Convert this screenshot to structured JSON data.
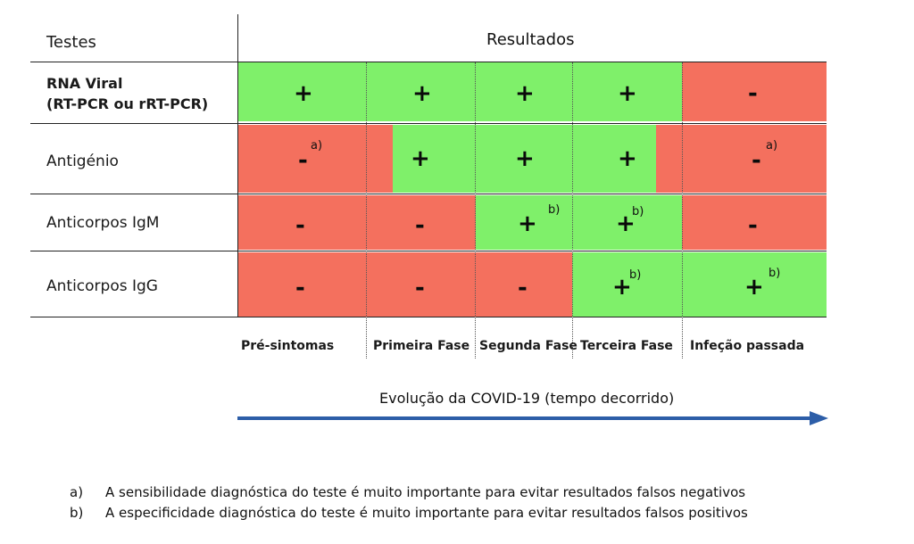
{
  "header": {
    "tests_label": "Testes",
    "results_label": "Resultados"
  },
  "rows": [
    {
      "name_line1": "RNA Viral",
      "name_line2": "(RT-PCR ou rRT-PCR)",
      "cells": [
        {
          "s": "+"
        },
        {
          "s": "+"
        },
        {
          "s": "+"
        },
        {
          "s": "+"
        },
        {
          "s": "-"
        }
      ]
    },
    {
      "name": "Antigénio",
      "cells": [
        {
          "s": "-",
          "n": "a)"
        },
        {
          "s": "+"
        },
        {
          "s": "+"
        },
        {
          "s": "+"
        },
        {
          "s": "-",
          "n": "a)"
        }
      ]
    },
    {
      "name": "Anticorpos IgM",
      "cells": [
        {
          "s": "-"
        },
        {
          "s": "-"
        },
        {
          "s": "+",
          "n": "b)"
        },
        {
          "s": "+",
          "n": "b)"
        },
        {
          "s": "-"
        }
      ]
    },
    {
      "name": "Anticorpos IgG",
      "cells": [
        {
          "s": "-"
        },
        {
          "s": "-"
        },
        {
          "s": "-"
        },
        {
          "s": "+",
          "n": "b)"
        },
        {
          "s": "+",
          "n": "b)"
        }
      ]
    }
  ],
  "phases": [
    "Pré-sintomas",
    "Primeira Fase",
    "Segunda Fase",
    "Terceira Fase",
    "Infeção passada"
  ],
  "timeline": {
    "label": "Evolução da COVID-19 (tempo decorrido)"
  },
  "notes": [
    {
      "key": "a)",
      "text": "A sensibilidade diagnóstica do teste é muito importante para evitar resultados falsos negativos"
    },
    {
      "key": "b)",
      "text": "A especificidade diagnóstica do teste é muito importante para evitar resultados falsos positivos"
    }
  ],
  "colors": {
    "positive": "#7ff06a",
    "negative": "#f4705e",
    "arrow": "#2d5ea8"
  }
}
